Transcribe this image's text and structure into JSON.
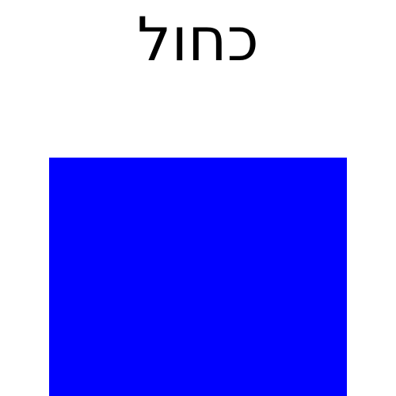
{
  "word": "כחול",
  "colors": {
    "text": "#000000",
    "swatch": "#0000ff",
    "background": "#ffffff"
  }
}
